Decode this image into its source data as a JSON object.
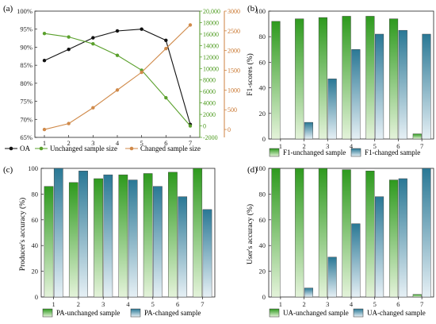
{
  "colors": {
    "oa": "#111111",
    "unchanged_line": "#5aa02c",
    "changed_line": "#d08a4a",
    "green_bar": "#33a02c",
    "blue_bar": "#2f7fa0",
    "axis": "#222222",
    "green_axis": "#4c9a1e",
    "orange_axis": "#c8742c"
  },
  "chart_data": [
    {
      "panel": "(a)",
      "type": "line",
      "x": [
        1,
        2,
        3,
        4,
        5,
        6,
        7
      ],
      "xticks": [
        "1",
        "2",
        "3",
        "4",
        "5",
        "6",
        "7"
      ],
      "series": [
        {
          "name": "OA",
          "axis": "left",
          "values": [
            86.3,
            89.4,
            92.6,
            94.5,
            95.0,
            91.9,
            68.6
          ]
        },
        {
          "name": "Unchanged sample size",
          "axis": "right1",
          "values": [
            16100,
            15500,
            14300,
            12300,
            9700,
            4900,
            0
          ]
        },
        {
          "name": "Changed sample size",
          "axis": "right2",
          "values": [
            0,
            150,
            550,
            1000,
            1450,
            2050,
            2650
          ]
        }
      ],
      "ylim_left": [
        65,
        100
      ],
      "yticks_left": [
        "65%",
        "70%",
        "75%",
        "80%",
        "85%",
        "90%",
        "95%",
        "100%"
      ],
      "ylim_right1": [
        -2000,
        20000
      ],
      "yticks_right1": [
        "-2000",
        "0",
        "2000",
        "4000",
        "6000",
        "8000",
        "10000",
        "12000",
        "14000",
        "16000",
        "18000",
        "20,000"
      ],
      "ylim_right2": [
        -200,
        3000
      ],
      "yticks_right2": [
        "0",
        "500",
        "1000",
        "1500",
        "2000",
        "2500",
        "3000"
      ],
      "legend": "bottom"
    },
    {
      "panel": "(b)",
      "type": "bar",
      "categories": [
        "1",
        "2",
        "3",
        "4",
        "5",
        "6",
        "7"
      ],
      "series": [
        {
          "name": "F1-unchanged sample",
          "values": [
            92,
            94,
            95,
            96,
            96,
            94,
            4
          ]
        },
        {
          "name": "F1-changed sample",
          "values": [
            0,
            13,
            47,
            70,
            82,
            85,
            82
          ]
        }
      ],
      "ylabel": "F1-scores (%)",
      "ylim": [
        0,
        100
      ],
      "yticks": [
        "0",
        "20",
        "40",
        "60",
        "80",
        "100"
      ],
      "legend": "bottom"
    },
    {
      "panel": "(c)",
      "type": "bar",
      "categories": [
        "1",
        "2",
        "3",
        "4",
        "5",
        "6",
        "7"
      ],
      "series": [
        {
          "name": "PA-unchanged sample",
          "values": [
            86,
            89,
            92,
            95,
            96,
            97,
            100
          ]
        },
        {
          "name": "PA-changed sample",
          "values": [
            100,
            98,
            95,
            91,
            86,
            78,
            68
          ]
        }
      ],
      "ylabel": "Producer's accuracy (%)",
      "ylim": [
        0,
        100
      ],
      "yticks": [
        "0",
        "20",
        "40",
        "60",
        "80",
        "100"
      ],
      "legend": "bottom"
    },
    {
      "panel": "(d)",
      "type": "bar",
      "categories": [
        "1",
        "2",
        "3",
        "4",
        "5",
        "6",
        "7"
      ],
      "series": [
        {
          "name": "UA-unchanged sample",
          "values": [
            100,
            100,
            100,
            99,
            98,
            91,
            2
          ]
        },
        {
          "name": "UA-changed sample",
          "values": [
            0,
            7,
            31,
            57,
            78,
            92,
            100
          ]
        }
      ],
      "ylabel": "User's accuracy (%)",
      "ylim": [
        0,
        100
      ],
      "yticks": [
        "0",
        "20",
        "40",
        "60",
        "80",
        "100"
      ],
      "legend": "bottom"
    }
  ]
}
